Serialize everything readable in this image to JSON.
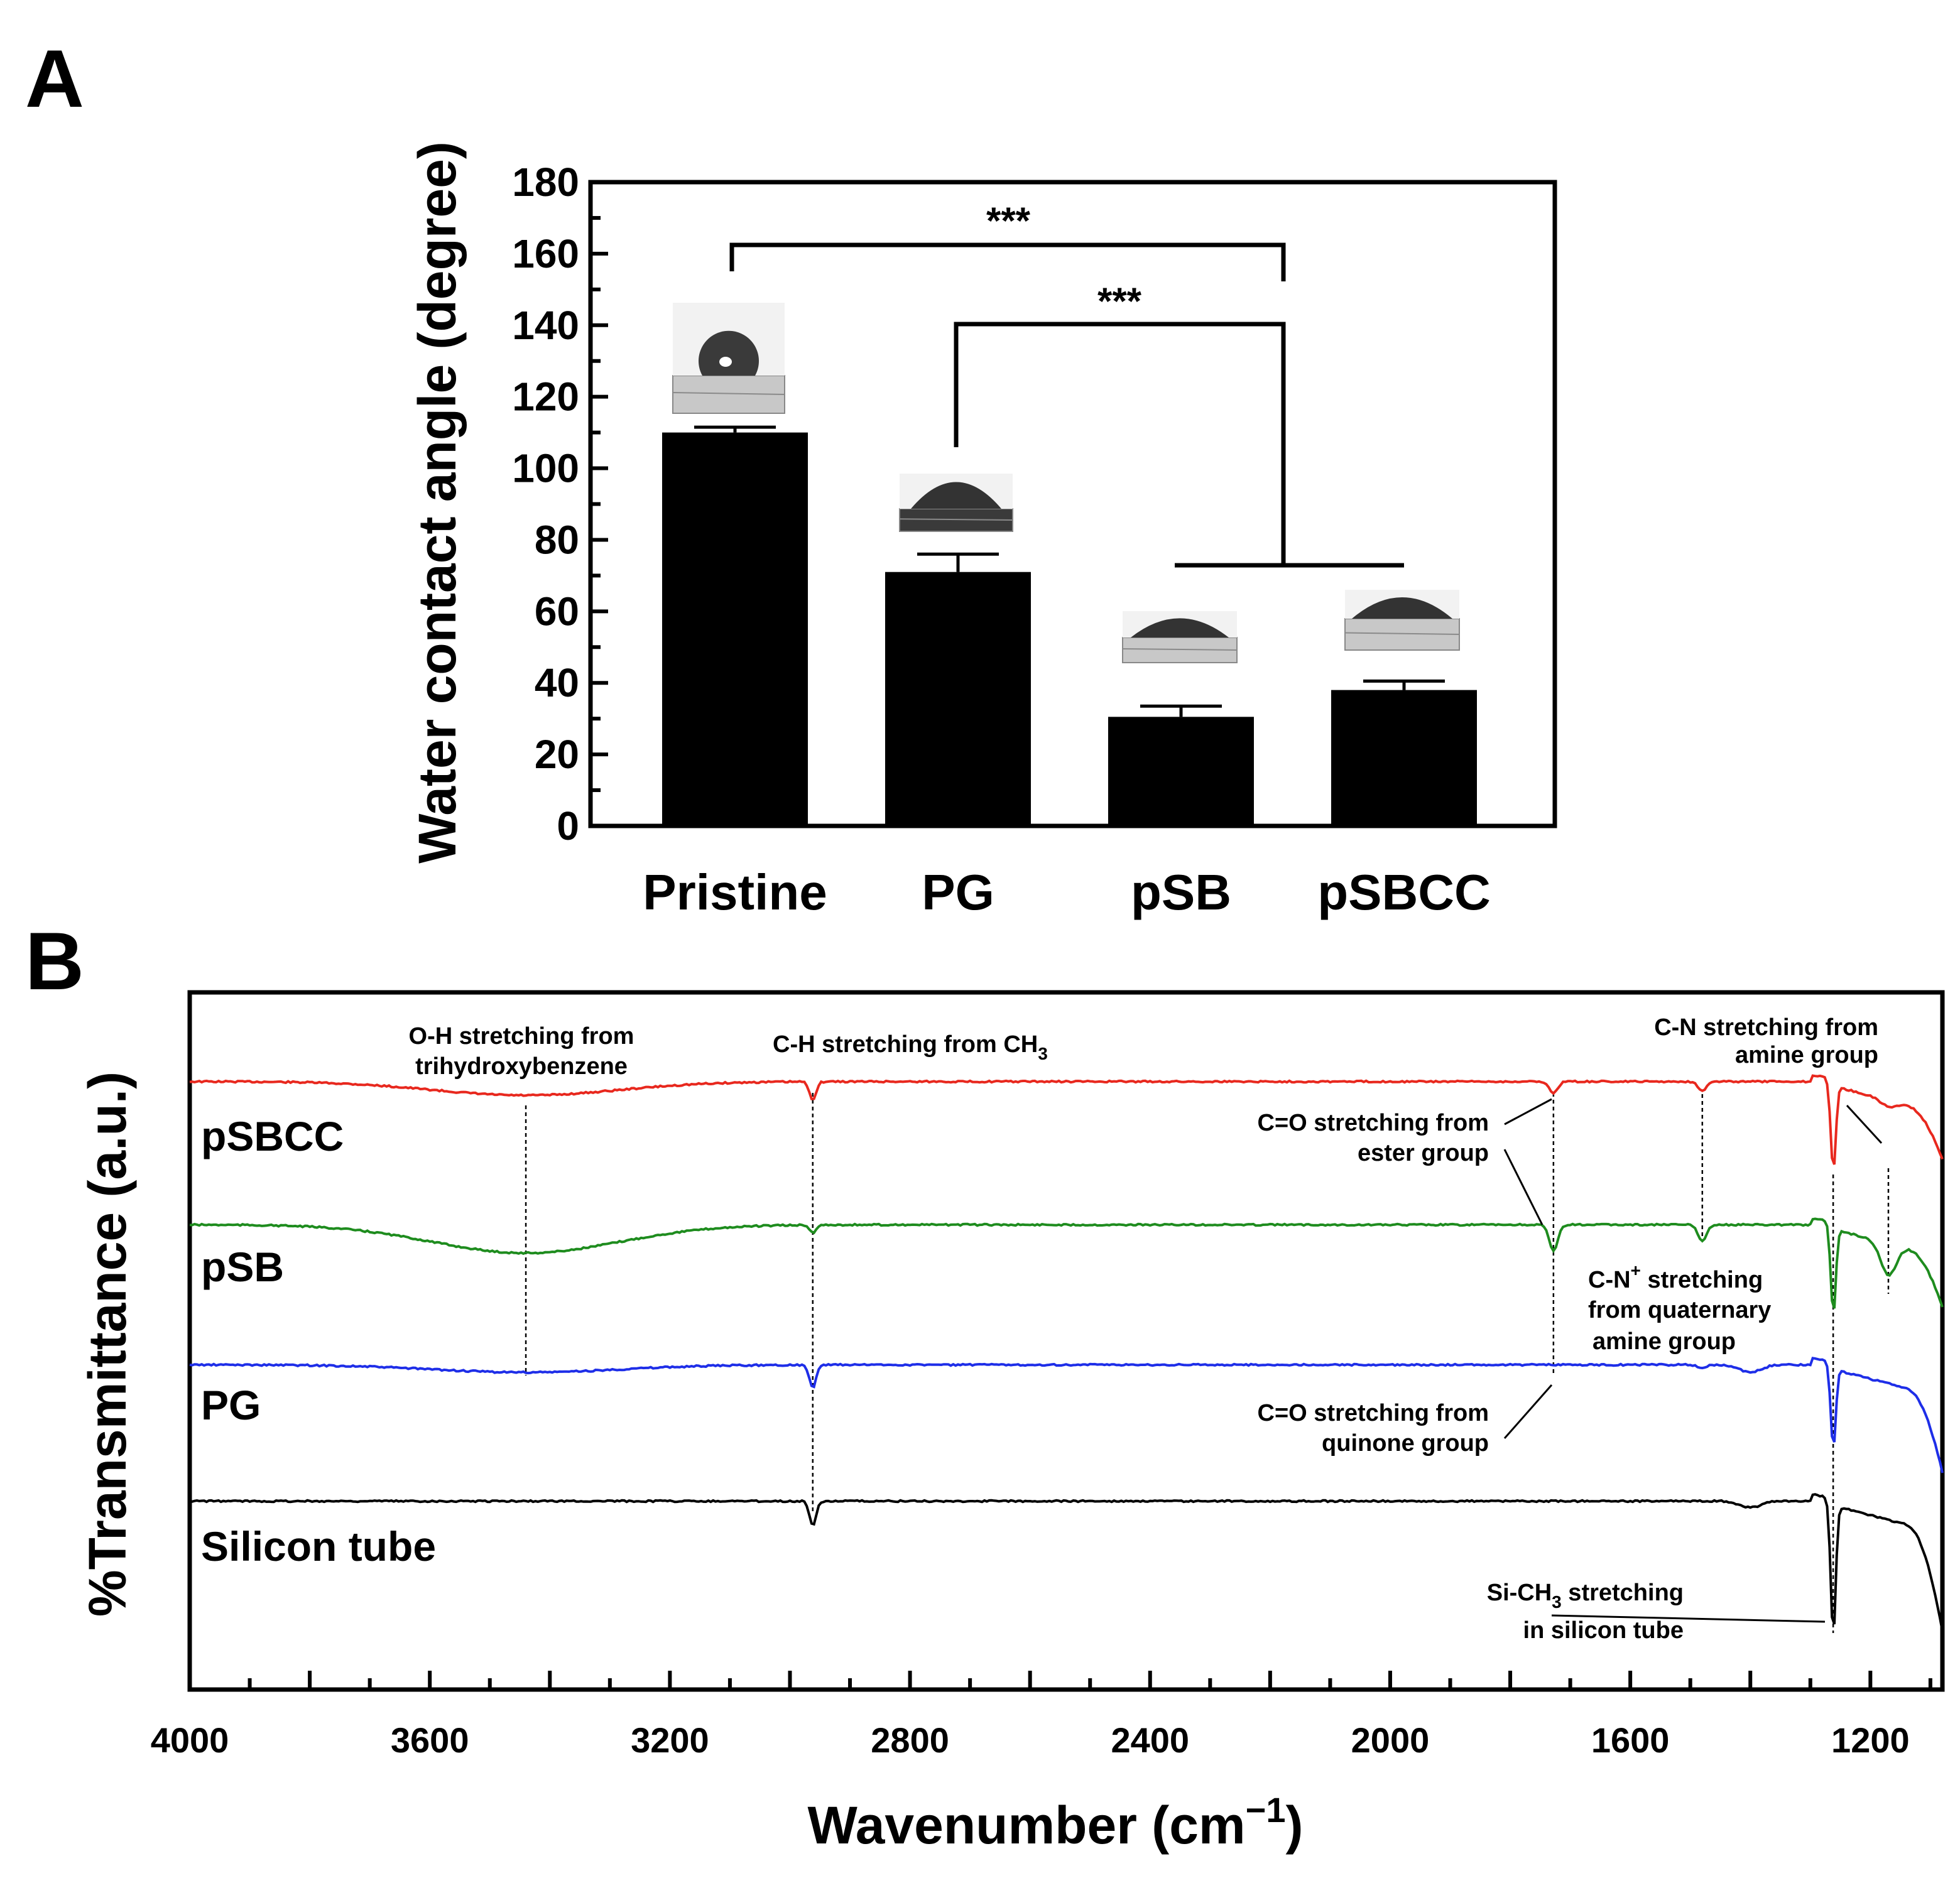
{
  "panels": {
    "a_label": "A",
    "b_label": "B"
  },
  "chart_data": [
    {
      "type": "bar",
      "panel": "A",
      "title": "",
      "xlabel": "",
      "ylabel": "Water contact angle (degree)",
      "ylim": [
        0,
        180
      ],
      "yticks": [
        0,
        20,
        40,
        60,
        80,
        100,
        120,
        140,
        160,
        180
      ],
      "categories": [
        "Pristine",
        "PG",
        "pSB",
        "pSBCC"
      ],
      "values": [
        110,
        71,
        30.5,
        38
      ],
      "errors": [
        1.5,
        5,
        3,
        2.5
      ],
      "significance": [
        {
          "from": "Pristine",
          "to": "pSB+pSBCC",
          "label": "***"
        },
        {
          "from": "PG",
          "to": "pSB+pSBCC",
          "label": "***"
        }
      ],
      "droplet_images": [
        "Pristine",
        "PG",
        "pSB",
        "pSBCC"
      ]
    },
    {
      "type": "line",
      "panel": "B",
      "xlabel": "Wavenumber (cm",
      "xlabel_sup": "−1",
      "xlabel_close": ")",
      "ylabel": "%Transmittance (a.u.)",
      "xlim": [
        4000,
        1080
      ],
      "xticks": [
        4000,
        3600,
        3200,
        2800,
        2400,
        2000,
        1600,
        1200
      ],
      "series": [
        {
          "name": "pSBCC",
          "color": "#e8281e"
        },
        {
          "name": "pSB",
          "color": "#1e8c1e"
        },
        {
          "name": "PG",
          "color": "#1e2ee8"
        },
        {
          "name": "Silicon tube",
          "color": "#000000"
        }
      ],
      "peaks": [
        3440,
        2962,
        1728,
        1480,
        1260,
        1170
      ],
      "annotations": {
        "oh_line1": "O-H stretching from",
        "oh_line2": "trihydroxybenzene",
        "ch": "C-H stretching from CH",
        "ch_sub": "3",
        "cn_line1": "C-N stretching from",
        "cn_line2": "amine group",
        "co_ester_line1": "C=O stretching from",
        "co_ester_line2": "ester group",
        "cnq_line1_a": "C-N",
        "cnq_sup": "+",
        "cnq_line1_b": " stretching",
        "cnq_line2": "from quaternary",
        "cnq_line3": "amine group",
        "co_quin_line1": "C=O stretching from",
        "co_quin_line2": "quinone group",
        "sich_a": "Si-CH",
        "sich_sub": "3",
        "sich_b": " stretching",
        "sich_line2": "in silicon tube"
      }
    }
  ]
}
